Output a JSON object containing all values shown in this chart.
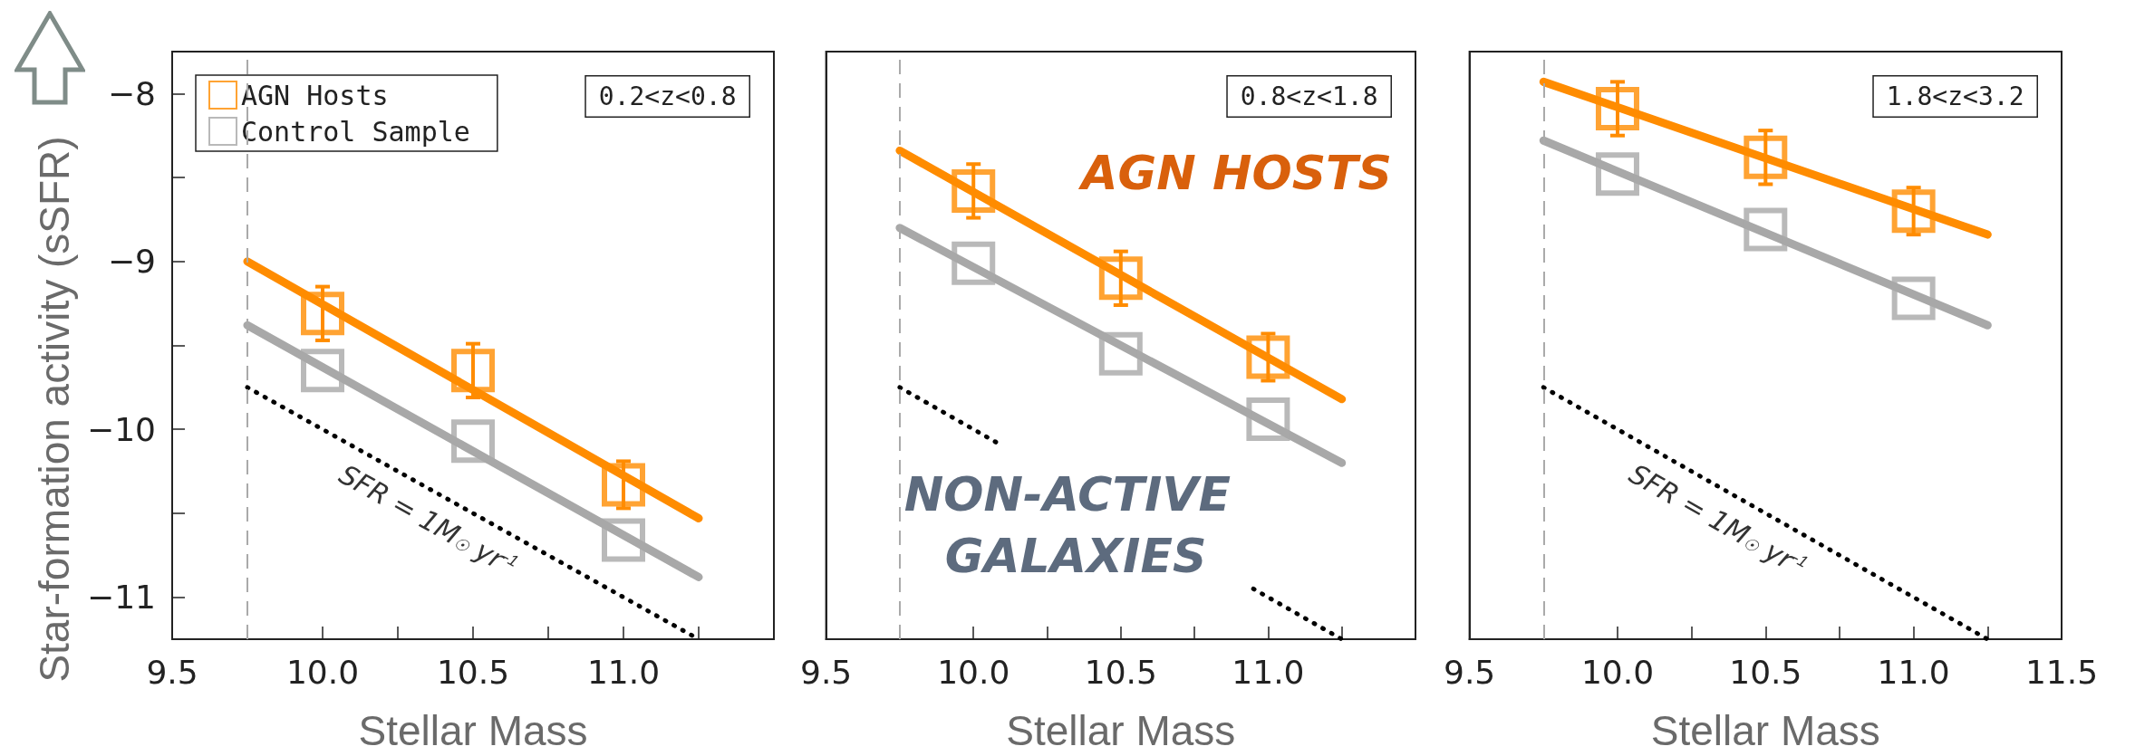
{
  "chart_data": [
    {
      "type": "scatter",
      "xlabel": "Stellar Mass",
      "ylabel": "Star-formation activity (sSFR)",
      "x": [
        10,
        10.5,
        11
      ],
      "xlim": [
        9.5,
        11.5
      ],
      "ylim": [
        -11.25,
        -7.75
      ],
      "xticks": [
        {
          "value": 9.5,
          "label": "9.5"
        },
        {
          "value": 9.75,
          "label": null
        },
        {
          "value": 10,
          "label": "10.0"
        },
        {
          "value": 10.25,
          "label": null
        },
        {
          "value": 10.5,
          "label": "10.5"
        },
        {
          "value": 10.75,
          "label": null
        },
        {
          "value": 11,
          "label": "11.0"
        },
        {
          "value": 11.25,
          "label": null
        }
      ],
      "yticks": [
        {
          "value": -8,
          "label": "−8"
        },
        {
          "value": -8.5,
          "label": null
        },
        {
          "value": -9,
          "label": "−9"
        },
        {
          "value": -9.5,
          "label": null
        },
        {
          "value": -10,
          "label": "−10"
        },
        {
          "value": -10.5,
          "label": null
        },
        {
          "value": -11,
          "label": "−11"
        }
      ],
      "marker": "square",
      "legend": "top left",
      "series": [
        {
          "type": "line",
          "x": [
            9.75,
            11.25
          ],
          "values": [
            -9.0,
            -10.53
          ],
          "color": "#ff8c00",
          "marker": "none"
        },
        {
          "type": "line",
          "x": [
            9.75,
            11.25
          ],
          "values": [
            -9.38,
            -10.88
          ],
          "color": "#a8a8a8",
          "marker": "none"
        },
        {
          "type": "line",
          "x": [
            9.75,
            11.25
          ],
          "values": [
            -9.75,
            -11.25
          ],
          "color": "#000000",
          "marker": "none",
          "line_style": "dotted"
        },
        {
          "name": "AGN Hosts",
          "color": "#ff8c00",
          "values": [
            -9.31,
            -9.65,
            -10.33
          ],
          "errors": [
            0.16,
            0.16,
            0.14
          ]
        },
        {
          "name": "Control Sample",
          "color": "#a8a8a8",
          "values": [
            -9.65,
            -10.07,
            -10.66
          ]
        }
      ],
      "ref_lines": [
        {
          "axis": "x",
          "value": 9.75,
          "color": "#aaaaaa",
          "line_style": "dashed"
        }
      ],
      "annotations": [
        "0.2<z<0.8",
        "SFR = 1M$_{☉}$ yr$^{-1}$"
      ]
    },
    {
      "type": "scatter",
      "xlabel": "Stellar Mass",
      "x": [
        10,
        10.5,
        11
      ],
      "xlim": [
        9.5,
        11.5
      ],
      "ylim": [
        -11.25,
        -7.75
      ],
      "tick_labels": "x",
      "xticks": [
        {
          "value": 9.5,
          "label": "9.5"
        },
        {
          "value": 9.75,
          "label": null
        },
        {
          "value": 10,
          "label": "10.0"
        },
        {
          "value": 10.25,
          "label": null
        },
        {
          "value": 10.5,
          "label": "10.5"
        },
        {
          "value": 10.75,
          "label": null
        },
        {
          "value": 11,
          "label": "11.0"
        },
        {
          "value": 11.25,
          "label": null
        }
      ],
      "marker": "square",
      "series": [
        {
          "type": "line",
          "x": [
            9.75,
            11.25
          ],
          "values": [
            -8.34,
            -9.82
          ],
          "color": "#ff8c00",
          "marker": "none"
        },
        {
          "type": "line",
          "x": [
            9.75,
            11.25
          ],
          "values": [
            -8.8,
            -10.2
          ],
          "color": "#a8a8a8",
          "marker": "none"
        },
        {
          "type": "line",
          "x": [
            9.75,
            10.1,
            10.5,
            10.95,
            11.25
          ],
          "values": [
            -9.75,
            -10.1,
            null,
            -10.95,
            -11.25
          ],
          "color": "#000000",
          "marker": "none",
          "line_style": "dotted"
        },
        {
          "color": "#ff8c00",
          "values": [
            -8.58,
            -9.1,
            -9.57
          ],
          "errors": [
            0.16,
            0.16,
            0.14
          ]
        },
        {
          "color": "#a8a8a8",
          "values": [
            -9.01,
            -9.55,
            -9.94
          ]
        }
      ],
      "ref_lines": [
        {
          "axis": "x",
          "value": 9.75,
          "color": "#aaaaaa",
          "line_style": "dashed"
        }
      ],
      "annotations": [
        "0.8<z<1.8",
        "AGN HOSTS",
        "NON-ACTIVE GALAXIES"
      ]
    },
    {
      "type": "scatter",
      "xlabel": "Stellar Mass",
      "x": [
        10,
        10.5,
        11
      ],
      "xlim": [
        9.5,
        11.5
      ],
      "ylim": [
        -11.25,
        -7.75
      ],
      "tick_labels": "x",
      "xticks": [
        {
          "value": 9.5,
          "label": "9.5"
        },
        {
          "value": 9.75,
          "label": null
        },
        {
          "value": 10,
          "label": "10.0"
        },
        {
          "value": 10.25,
          "label": null
        },
        {
          "value": 10.5,
          "label": "10.5"
        },
        {
          "value": 10.75,
          "label": null
        },
        {
          "value": 11,
          "label": "11.0"
        },
        {
          "value": 11.25,
          "label": null
        },
        {
          "value": 11.5,
          "label": "11.5"
        }
      ],
      "marker": "square",
      "series": [
        {
          "type": "line",
          "x": [
            9.75,
            11.25
          ],
          "values": [
            -7.93,
            -8.84
          ],
          "color": "#ff8c00",
          "marker": "none"
        },
        {
          "type": "line",
          "x": [
            9.75,
            11.25
          ],
          "values": [
            -8.28,
            -9.38
          ],
          "color": "#a8a8a8",
          "marker": "none"
        },
        {
          "type": "line",
          "x": [
            9.75,
            11.25
          ],
          "values": [
            -9.75,
            -11.25
          ],
          "color": "#000000",
          "marker": "none",
          "line_style": "dotted"
        },
        {
          "color": "#ff8c00",
          "values": [
            -8.09,
            -8.38,
            -8.7
          ],
          "errors": [
            0.16,
            0.16,
            0.14
          ]
        },
        {
          "color": "#a8a8a8",
          "values": [
            -8.48,
            -8.81,
            -9.22
          ]
        }
      ],
      "ref_lines": [
        {
          "axis": "x",
          "value": 9.75,
          "color": "#aaaaaa",
          "line_style": "dashed"
        }
      ],
      "annotations": [
        "1.8<z<3.2",
        "SFR = 1M$_{☉}$ yr$^{-1}$"
      ]
    }
  ]
}
